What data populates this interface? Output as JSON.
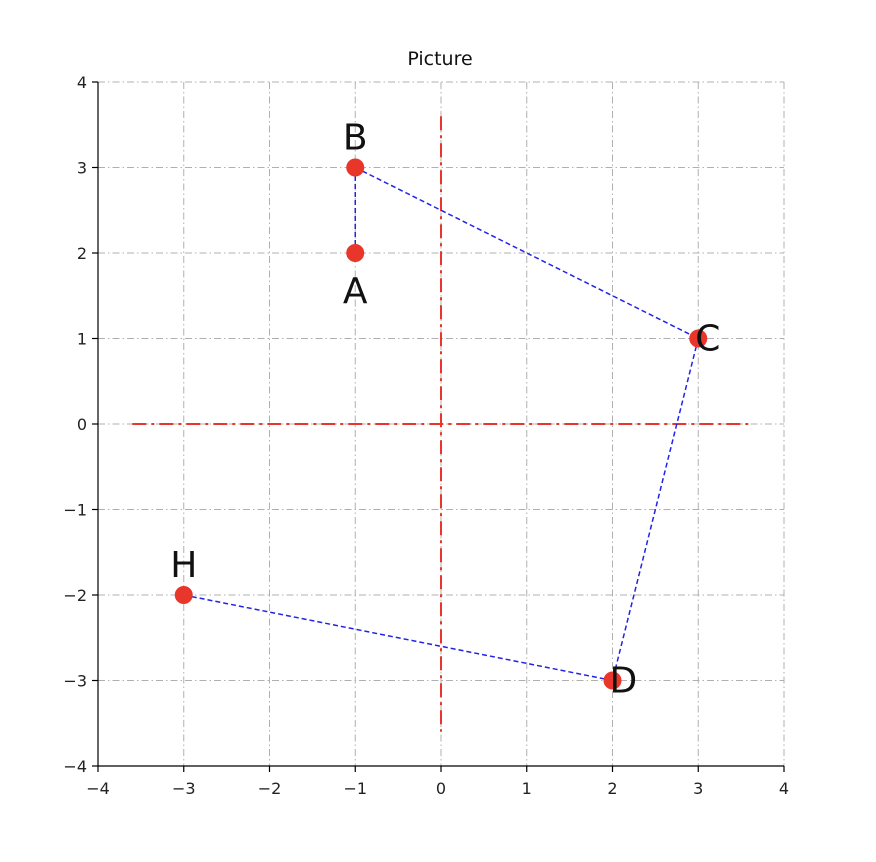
{
  "chart_data": {
    "type": "scatter",
    "title": "Picture",
    "xlabel": "",
    "ylabel": "",
    "xlim": [
      -4,
      4
    ],
    "ylim": [
      -4,
      4
    ],
    "x_ticks": [
      -4,
      -3,
      -2,
      -1,
      0,
      1,
      2,
      3,
      4
    ],
    "y_ticks": [
      -4,
      -3,
      -2,
      -1,
      0,
      1,
      2,
      3,
      4
    ],
    "x_tick_labels": [
      "−4",
      "−3",
      "−2",
      "−1",
      "0",
      "1",
      "2",
      "3",
      "4"
    ],
    "y_tick_labels": [
      "−4",
      "−3",
      "−2",
      "−1",
      "0",
      "1",
      "2",
      "3",
      "4"
    ],
    "grid": true,
    "axis_lines": {
      "x_range": [
        -3.6,
        3.6
      ],
      "y_range": [
        -3.6,
        3.6
      ],
      "color": "#e8372a",
      "style": "dash-dot"
    },
    "points": [
      {
        "label": "A",
        "x": -1,
        "y": 2,
        "label_position": "below"
      },
      {
        "label": "B",
        "x": -1,
        "y": 3,
        "label_position": "above"
      },
      {
        "label": "C",
        "x": 3,
        "y": 1,
        "label_position": "right"
      },
      {
        "label": "D",
        "x": 2,
        "y": -3,
        "label_position": "right"
      },
      {
        "label": "H",
        "x": -3,
        "y": -2,
        "label_position": "above"
      }
    ],
    "path": [
      "A",
      "B",
      "C",
      "D",
      "H"
    ],
    "colors": {
      "point": "#e8372a",
      "path": "#2323e6",
      "grid": "#b0b0b0"
    }
  }
}
